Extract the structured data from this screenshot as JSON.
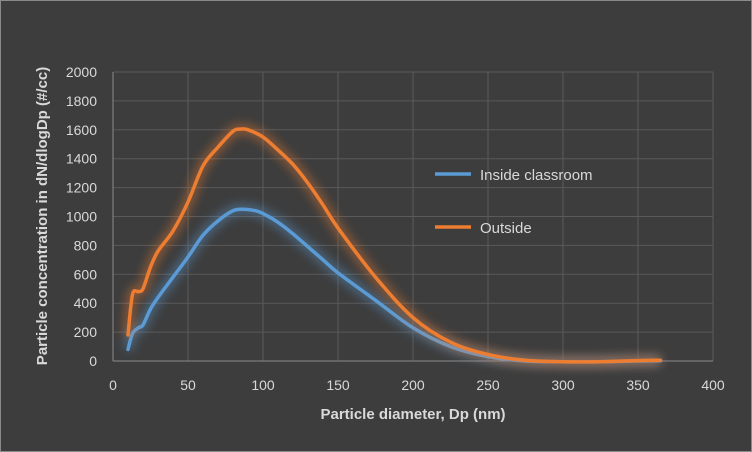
{
  "chart_data": {
    "type": "line",
    "title": "",
    "xlabel": "Particle diameter, Dp (nm)",
    "ylabel": "Particle concentration in dN/dlogDp (#/cc)",
    "xlim": [
      0,
      400
    ],
    "ylim": [
      0,
      2000
    ],
    "xticks": [
      0,
      50,
      100,
      150,
      200,
      250,
      300,
      350,
      400
    ],
    "yticks": [
      0,
      200,
      400,
      600,
      800,
      1000,
      1200,
      1400,
      1600,
      1800,
      2000
    ],
    "grid": true,
    "legend_position": "right",
    "series": [
      {
        "name": "Inside classroom",
        "color": "#5b9bd5",
        "points": [
          [
            10,
            80
          ],
          [
            13,
            190
          ],
          [
            17,
            230
          ],
          [
            20,
            250
          ],
          [
            25,
            360
          ],
          [
            30,
            440
          ],
          [
            40,
            580
          ],
          [
            50,
            720
          ],
          [
            60,
            870
          ],
          [
            70,
            970
          ],
          [
            80,
            1040
          ],
          [
            87,
            1050
          ],
          [
            95,
            1040
          ],
          [
            100,
            1020
          ],
          [
            110,
            960
          ],
          [
            120,
            880
          ],
          [
            130,
            790
          ],
          [
            140,
            700
          ],
          [
            150,
            610
          ],
          [
            175,
            420
          ],
          [
            200,
            230
          ],
          [
            225,
            100
          ],
          [
            250,
            30
          ],
          [
            275,
            0
          ],
          [
            300,
            -5
          ],
          [
            325,
            -5
          ],
          [
            350,
            0
          ],
          [
            365,
            2
          ]
        ]
      },
      {
        "name": "Outside",
        "color": "#ed7d31",
        "points": [
          [
            10,
            180
          ],
          [
            13,
            460
          ],
          [
            17,
            480
          ],
          [
            20,
            500
          ],
          [
            25,
            650
          ],
          [
            30,
            760
          ],
          [
            40,
            900
          ],
          [
            50,
            1100
          ],
          [
            60,
            1350
          ],
          [
            70,
            1480
          ],
          [
            80,
            1590
          ],
          [
            85,
            1605
          ],
          [
            90,
            1600
          ],
          [
            100,
            1550
          ],
          [
            110,
            1460
          ],
          [
            120,
            1360
          ],
          [
            130,
            1230
          ],
          [
            140,
            1080
          ],
          [
            150,
            920
          ],
          [
            175,
            580
          ],
          [
            200,
            300
          ],
          [
            225,
            130
          ],
          [
            250,
            45
          ],
          [
            275,
            5
          ],
          [
            300,
            -5
          ],
          [
            325,
            -5
          ],
          [
            350,
            3
          ],
          [
            365,
            5
          ]
        ]
      }
    ]
  }
}
